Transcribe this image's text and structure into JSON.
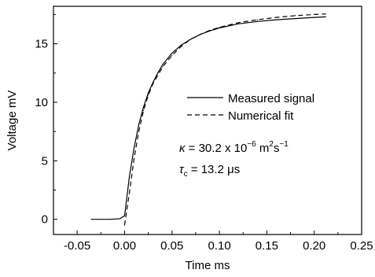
{
  "chart_data": {
    "type": "line",
    "xlabel": "Time ms",
    "ylabel": "Voltage mV",
    "xlim": [
      -0.075,
      0.25
    ],
    "ylim": [
      -1.3,
      18.2
    ],
    "xticks": [
      -0.05,
      0.0,
      0.05,
      0.1,
      0.15,
      0.2,
      0.25
    ],
    "xtick_labels": [
      "-0.05",
      "0.00",
      "0.05",
      "0.10",
      "0.15",
      "0.20",
      "0.25"
    ],
    "yticks": [
      0,
      5,
      10,
      15
    ],
    "ytick_labels": [
      "0",
      "5",
      "10",
      "15"
    ],
    "legend_placement": "center-right",
    "series": [
      {
        "name": "Measured signal",
        "style": "solid",
        "color": "#000000",
        "x": [
          -0.035,
          -0.025,
          -0.015,
          -0.005,
          0.0,
          0.002,
          0.005,
          0.01,
          0.015,
          0.02,
          0.025,
          0.03,
          0.035,
          0.04,
          0.05,
          0.06,
          0.07,
          0.08,
          0.09,
          0.1,
          0.12,
          0.14,
          0.16,
          0.18,
          0.2,
          0.212
        ],
        "y": [
          0.0,
          0.0,
          0.0,
          0.05,
          0.3,
          1.6,
          3.6,
          6.1,
          8.1,
          9.6,
          10.8,
          11.7,
          12.5,
          13.2,
          14.2,
          14.9,
          15.4,
          15.8,
          16.1,
          16.35,
          16.7,
          16.9,
          17.05,
          17.15,
          17.25,
          17.3
        ]
      },
      {
        "name": "Numerical fit",
        "style": "dashed",
        "color": "#000000",
        "x": [
          0.0,
          0.005,
          0.01,
          0.015,
          0.02,
          0.025,
          0.03,
          0.04,
          0.05,
          0.06,
          0.07,
          0.08,
          0.09,
          0.1,
          0.12,
          0.14,
          0.16,
          0.18,
          0.2,
          0.212
        ],
        "y": [
          -0.5,
          2.2,
          5.2,
          7.5,
          9.3,
          10.6,
          11.6,
          13.0,
          14.0,
          14.8,
          15.4,
          15.8,
          16.15,
          16.4,
          16.8,
          17.05,
          17.25,
          17.4,
          17.5,
          17.55
        ]
      }
    ],
    "annotations": {
      "kappa_symbol": "κ",
      "kappa_value": " = 30.2 x 10",
      "kappa_exp": "−6",
      "kappa_unit_m": " m",
      "kappa_unit_m_exp": "2",
      "kappa_unit_s": "s",
      "kappa_unit_s_exp": "−1",
      "tau_symbol": "τ",
      "tau_subscript": "c",
      "tau_value": " = 13.2 μs"
    }
  }
}
